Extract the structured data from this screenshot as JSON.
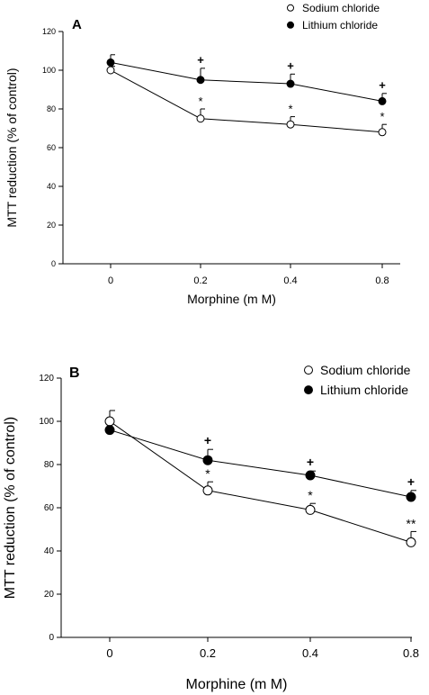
{
  "chart_data": [
    {
      "type": "line",
      "panel_label": "A",
      "categories": [
        "0",
        "0.2",
        "0.4",
        "0.8"
      ],
      "x": [
        0,
        0.2,
        0.4,
        0.8
      ],
      "xlabel": "Morphine (m M)",
      "ylabel": "MTT reduction (% of control)",
      "ylim": [
        0,
        120
      ],
      "yticks": [
        0,
        20,
        40,
        60,
        80,
        100,
        120
      ],
      "grid": false,
      "legend_position": "top-right",
      "series": [
        {
          "name": "Sodium chloride",
          "marker": "open-circle",
          "values": [
            100,
            75,
            72,
            68
          ],
          "errors": [
            2,
            5,
            4,
            4
          ],
          "annotations": [
            "",
            "*",
            "*",
            "*"
          ]
        },
        {
          "name": "Lithium chloride",
          "marker": "filled-circle",
          "values": [
            104,
            95,
            93,
            84
          ],
          "errors": [
            4,
            6,
            5,
            4
          ],
          "annotations": [
            "",
            "+",
            "+",
            "+"
          ]
        }
      ]
    },
    {
      "type": "line",
      "panel_label": "B",
      "categories": [
        "0",
        "0.2",
        "0.4",
        "0.8"
      ],
      "x": [
        0,
        0.2,
        0.4,
        0.8
      ],
      "xlabel": "Morphine (m M)",
      "ylabel": "MTT reduction (% of control)",
      "ylim": [
        0,
        120
      ],
      "yticks": [
        0,
        20,
        40,
        60,
        80,
        100,
        120
      ],
      "grid": false,
      "legend_position": "top-right",
      "series": [
        {
          "name": "Sodium chloride",
          "marker": "open-circle",
          "values": [
            100,
            68,
            59,
            44
          ],
          "errors": [
            5,
            4,
            3,
            5
          ],
          "annotations": [
            "",
            "*",
            "*",
            "**"
          ]
        },
        {
          "name": "Lithium chloride",
          "marker": "filled-circle",
          "values": [
            96,
            82,
            75,
            65
          ],
          "errors": [
            0,
            5,
            2,
            3
          ],
          "annotations": [
            "",
            "+",
            "+",
            "+"
          ]
        }
      ]
    }
  ]
}
